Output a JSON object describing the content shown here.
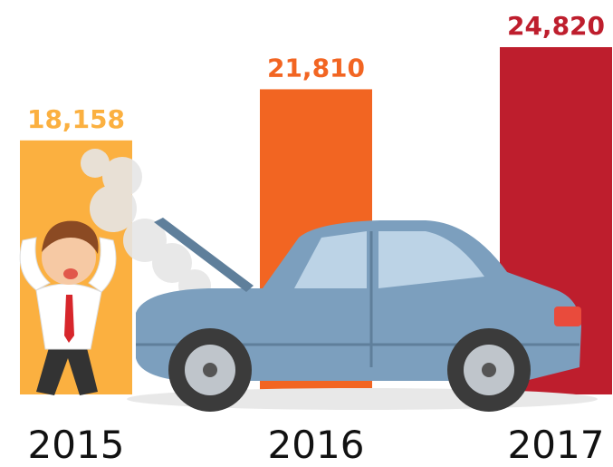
{
  "chart_data": {
    "type": "bar",
    "categories": [
      "2015",
      "2016",
      "2017"
    ],
    "values": [
      18158,
      21810,
      24820
    ],
    "value_labels": [
      "18,158",
      "21,810",
      "24,820"
    ],
    "colors": [
      "#fbb040",
      "#f26522",
      "#be1e2d"
    ]
  }
}
